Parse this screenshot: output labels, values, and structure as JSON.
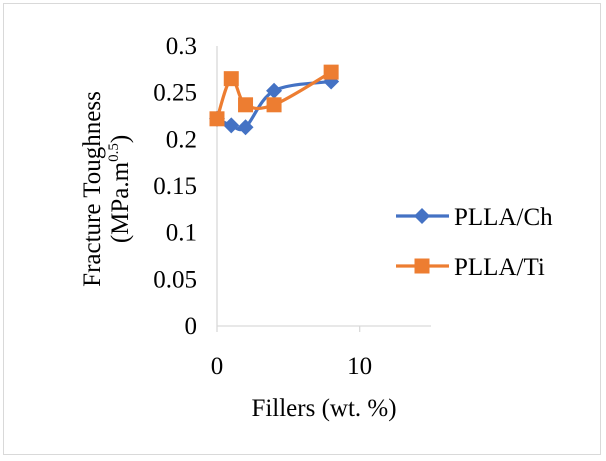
{
  "chart_data": {
    "type": "line",
    "title": "",
    "xlabel": "Fillers (wt. %)",
    "ylabel_line1": "Fracture Toughness",
    "ylabel_line2_base": "(MPa.m",
    "ylabel_line2_sup": "0.5",
    "ylabel_line2_end": ")",
    "xlim": [
      0,
      15
    ],
    "ylim": [
      0,
      0.3
    ],
    "x_ticks": [
      0,
      10
    ],
    "x_tick_labels": [
      "0",
      "10"
    ],
    "y_ticks": [
      0,
      0.05,
      0.1,
      0.15,
      0.2,
      0.25,
      0.3
    ],
    "y_tick_labels": [
      "0",
      "0.05",
      "0.1",
      "0.15",
      "0.2",
      "0.25",
      "0.3"
    ],
    "grid": false,
    "smooth": true,
    "legend_position": "right",
    "series": [
      {
        "name": "PLLA/Ch",
        "color": "#4472c4",
        "marker": "diamond",
        "x": [
          0,
          1,
          2,
          4,
          8
        ],
        "y": [
          0.222,
          0.215,
          0.213,
          0.252,
          0.262
        ]
      },
      {
        "name": "PLLA/Ti",
        "color": "#ed7d31",
        "marker": "square",
        "x": [
          0,
          1,
          2,
          4,
          8
        ],
        "y": [
          0.222,
          0.265,
          0.237,
          0.237,
          0.272
        ]
      }
    ]
  }
}
